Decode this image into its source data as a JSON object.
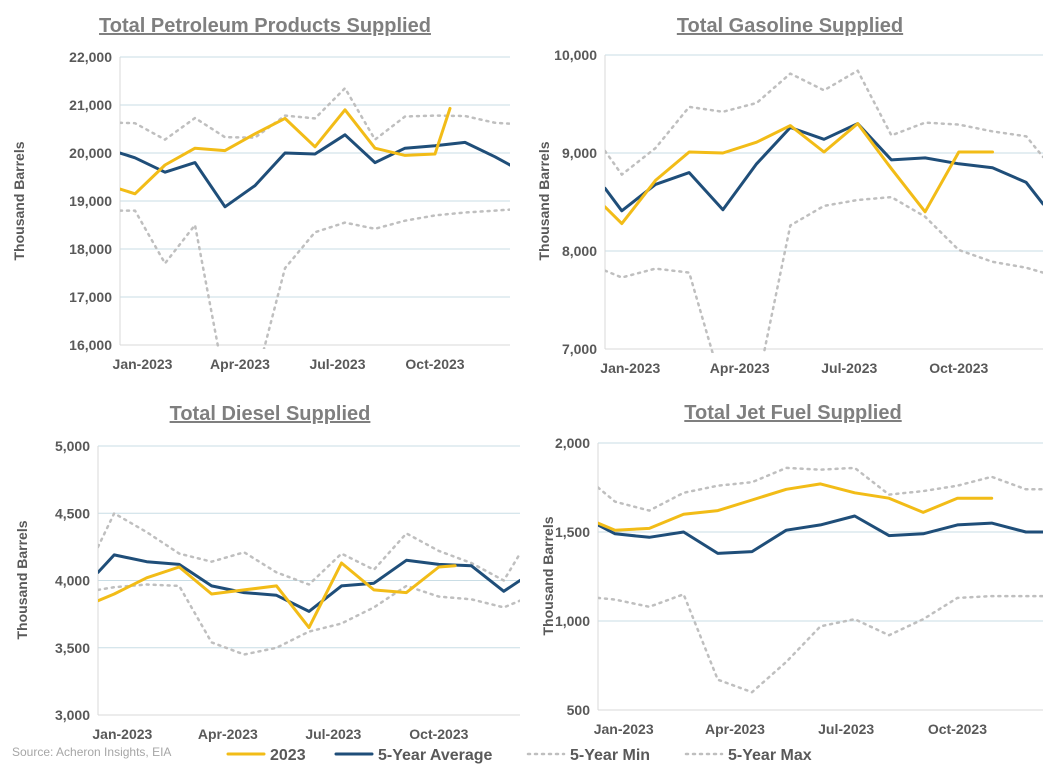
{
  "source": "Source: Acheron Insights, EIA",
  "colors": {
    "s2023": "#f2bc17",
    "avg": "#1f4e79",
    "min": "#bfbfbf",
    "max": "#bfbfbf"
  },
  "legend": [
    "2023",
    "5-Year Average",
    "5-Year Min",
    "5-Year Max"
  ],
  "chart_data": [
    {
      "type": "line",
      "title": "Total Petroleum Products Supplied",
      "ylabel": "Thousand Barrels",
      "ylim": [
        16000,
        22000
      ],
      "yticks": [
        16000,
        17000,
        18000,
        19000,
        20000,
        21000,
        22000
      ],
      "ytick_labels": [
        "16,000",
        "17,000",
        "18,000",
        "19,000",
        "20,000",
        "21,000",
        "22,000"
      ],
      "xlim": [
        1,
        53
      ],
      "xticks": [
        {
          "x": 4,
          "label": "Jan-2023"
        },
        {
          "x": 17,
          "label": "Apr-2023"
        },
        {
          "x": 30,
          "label": "Jul-2023"
        },
        {
          "x": 43,
          "label": "Oct-2023"
        }
      ],
      "series": [
        {
          "name": "2023",
          "key": "s2023",
          "x": [
            1,
            3,
            7,
            11,
            15,
            19,
            23,
            27,
            31,
            35,
            39,
            43,
            45
          ],
          "y": [
            19250,
            19150,
            19750,
            20100,
            20050,
            20400,
            20720,
            20130,
            20900,
            20100,
            19950,
            19980,
            20930
          ]
        },
        {
          "name": "5-Year Average",
          "key": "avg",
          "x": [
            1,
            3,
            7,
            11,
            15,
            19,
            23,
            27,
            31,
            35,
            39,
            43,
            47,
            51,
            53
          ],
          "y": [
            20000,
            19900,
            19600,
            19800,
            18880,
            19320,
            20000,
            19980,
            20380,
            19800,
            20100,
            20150,
            20220,
            19920,
            19750
          ]
        },
        {
          "name": "5-Year Min",
          "key": "min",
          "x": [
            1,
            3,
            7,
            11,
            15,
            19,
            23,
            27,
            31,
            35,
            39,
            43,
            47,
            51,
            53
          ],
          "y": [
            18800,
            18800,
            17700,
            18500,
            15200,
            15200,
            17600,
            18350,
            18550,
            18420,
            18590,
            18700,
            18760,
            18800,
            18820
          ]
        },
        {
          "name": "5-Year Max",
          "key": "max",
          "x": [
            1,
            3,
            7,
            11,
            15,
            19,
            23,
            27,
            31,
            35,
            39,
            43,
            47,
            51,
            53
          ],
          "y": [
            20630,
            20620,
            20280,
            20730,
            20330,
            20320,
            20780,
            20720,
            21350,
            20280,
            20760,
            20780,
            20770,
            20630,
            20610
          ]
        }
      ]
    },
    {
      "type": "line",
      "title": "Total Gasoline Supplied",
      "ylabel": "Thousand Barrels",
      "ylim": [
        7000,
        10000
      ],
      "yticks": [
        7000,
        8000,
        9000,
        10000
      ],
      "ytick_labels": [
        "7,000",
        "8,000",
        "9,000",
        "10,000"
      ],
      "xlim": [
        1,
        53
      ],
      "xticks": [
        {
          "x": 4,
          "label": "Jan-2023"
        },
        {
          "x": 17,
          "label": "Apr-2023"
        },
        {
          "x": 30,
          "label": "Jul-2023"
        },
        {
          "x": 43,
          "label": "Oct-2023"
        }
      ],
      "series": [
        {
          "name": "2023",
          "key": "s2023",
          "x": [
            1,
            3,
            7,
            11,
            15,
            19,
            23,
            27,
            31,
            35,
            39,
            43,
            47
          ],
          "y": [
            8450,
            8280,
            8720,
            9010,
            9000,
            9110,
            9280,
            9010,
            9300,
            8840,
            8400,
            9010,
            9010
          ]
        },
        {
          "name": "5-Year Average",
          "key": "avg",
          "x": [
            1,
            3,
            7,
            11,
            15,
            19,
            23,
            27,
            31,
            35,
            39,
            43,
            47,
            51,
            53
          ],
          "y": [
            8640,
            8410,
            8680,
            8800,
            8420,
            8890,
            9260,
            9140,
            9300,
            8930,
            8950,
            8890,
            8850,
            8700,
            8480
          ]
        },
        {
          "name": "5-Year Min",
          "key": "min",
          "x": [
            1,
            3,
            7,
            11,
            15,
            19,
            23,
            27,
            31,
            35,
            39,
            43,
            47,
            51,
            53
          ],
          "y": [
            7800,
            7730,
            7820,
            7780,
            6600,
            6600,
            8260,
            8460,
            8520,
            8550,
            8350,
            8010,
            7890,
            7830,
            7780
          ]
        },
        {
          "name": "5-Year Max",
          "key": "max",
          "x": [
            1,
            3,
            7,
            11,
            15,
            19,
            23,
            27,
            31,
            35,
            39,
            43,
            47,
            51,
            53
          ],
          "y": [
            9020,
            8780,
            9050,
            9470,
            9420,
            9510,
            9810,
            9640,
            9840,
            9180,
            9310,
            9290,
            9220,
            9170,
            8960
          ]
        }
      ]
    },
    {
      "type": "line",
      "title": "Total Diesel Supplied",
      "ylabel": "Thousand Barrels",
      "ylim": [
        3000,
        5000
      ],
      "yticks": [
        3000,
        3500,
        4000,
        4500,
        5000
      ],
      "ytick_labels": [
        "3,000",
        "3,500",
        "4,000",
        "4,500",
        "5,000"
      ],
      "xlim": [
        1,
        53
      ],
      "xticks": [
        {
          "x": 4,
          "label": "Jan-2023"
        },
        {
          "x": 17,
          "label": "Apr-2023"
        },
        {
          "x": 30,
          "label": "Jul-2023"
        },
        {
          "x": 43,
          "label": "Oct-2023"
        }
      ],
      "series": [
        {
          "name": "2023",
          "key": "s2023",
          "x": [
            1,
            3,
            7,
            11,
            15,
            19,
            23,
            27,
            31,
            35,
            39,
            43,
            45
          ],
          "y": [
            3850,
            3900,
            4020,
            4100,
            3900,
            3930,
            3960,
            3650,
            4130,
            3930,
            3910,
            4100,
            4110
          ]
        },
        {
          "name": "5-Year Average",
          "key": "avg",
          "x": [
            1,
            3,
            7,
            11,
            15,
            19,
            23,
            27,
            31,
            35,
            39,
            43,
            47,
            51,
            53
          ],
          "y": [
            4060,
            4190,
            4140,
            4120,
            3960,
            3910,
            3890,
            3770,
            3960,
            3980,
            4150,
            4120,
            4110,
            3920,
            4000
          ]
        },
        {
          "name": "5-Year Min",
          "key": "min",
          "x": [
            1,
            3,
            7,
            11,
            15,
            19,
            23,
            27,
            31,
            35,
            39,
            43,
            47,
            51,
            53
          ],
          "y": [
            3930,
            3950,
            3970,
            3960,
            3540,
            3450,
            3500,
            3620,
            3680,
            3800,
            3960,
            3880,
            3860,
            3800,
            3850
          ]
        },
        {
          "name": "5-Year Max",
          "key": "max",
          "x": [
            1,
            3,
            7,
            11,
            15,
            19,
            23,
            27,
            31,
            35,
            39,
            43,
            47,
            51,
            53
          ],
          "y": [
            4250,
            4500,
            4360,
            4200,
            4140,
            4210,
            4060,
            3970,
            4200,
            4080,
            4350,
            4220,
            4130,
            4000,
            4200
          ]
        }
      ]
    },
    {
      "type": "line",
      "title": "Total Jet Fuel Supplied",
      "ylabel": "Thousand Barrels",
      "ylim": [
        500,
        2000
      ],
      "yticks": [
        500,
        1000,
        1500,
        2000
      ],
      "ytick_labels": [
        "500",
        "1,000",
        "1,500",
        "2,000"
      ],
      "xlim": [
        1,
        53
      ],
      "xticks": [
        {
          "x": 4,
          "label": "Jan-2023"
        },
        {
          "x": 17,
          "label": "Apr-2023"
        },
        {
          "x": 30,
          "label": "Jul-2023"
        },
        {
          "x": 43,
          "label": "Oct-2023"
        }
      ],
      "series": [
        {
          "name": "2023",
          "key": "s2023",
          "x": [
            1,
            3,
            7,
            11,
            15,
            19,
            23,
            27,
            31,
            35,
            39,
            43,
            47
          ],
          "y": [
            1550,
            1510,
            1520,
            1600,
            1620,
            1680,
            1740,
            1770,
            1720,
            1690,
            1610,
            1690,
            1690
          ]
        },
        {
          "name": "5-Year Average",
          "key": "avg",
          "x": [
            1,
            3,
            7,
            11,
            15,
            19,
            23,
            27,
            31,
            35,
            39,
            43,
            47,
            51,
            53
          ],
          "y": [
            1540,
            1490,
            1470,
            1500,
            1380,
            1390,
            1510,
            1540,
            1590,
            1480,
            1490,
            1540,
            1550,
            1500,
            1500
          ]
        },
        {
          "name": "5-Year Min",
          "key": "min",
          "x": [
            1,
            3,
            7,
            11,
            15,
            19,
            23,
            27,
            31,
            35,
            39,
            43,
            47,
            51,
            53
          ],
          "y": [
            1130,
            1120,
            1080,
            1150,
            670,
            600,
            770,
            970,
            1010,
            920,
            1010,
            1130,
            1140,
            1140,
            1140
          ]
        },
        {
          "name": "5-Year Max",
          "key": "max",
          "x": [
            1,
            3,
            7,
            11,
            15,
            19,
            23,
            27,
            31,
            35,
            39,
            43,
            47,
            51,
            53
          ],
          "y": [
            1750,
            1670,
            1620,
            1720,
            1760,
            1780,
            1860,
            1850,
            1860,
            1710,
            1730,
            1760,
            1810,
            1740,
            1740
          ]
        }
      ]
    }
  ]
}
